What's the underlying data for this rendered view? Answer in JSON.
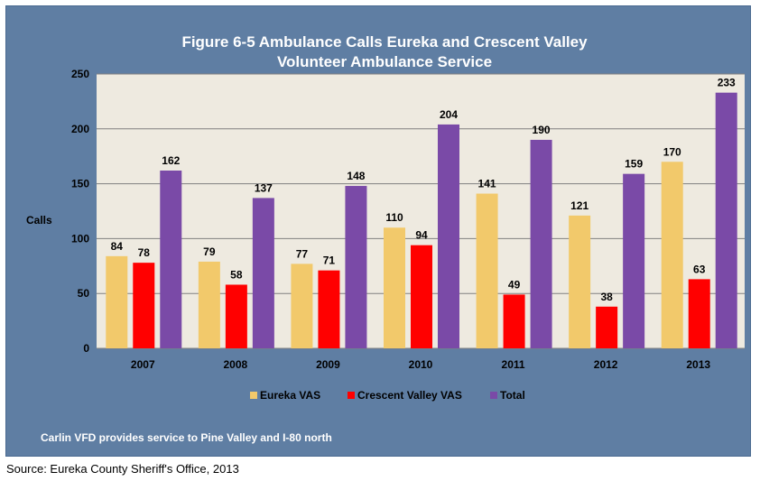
{
  "chart_data": {
    "type": "bar",
    "title_lines": [
      "Figure 6-5 Ambulance Calls Eureka and Crescent Valley",
      "Volunteer Ambulance Service"
    ],
    "ylabel": "Calls",
    "xlabel": "",
    "ylim": [
      0,
      250
    ],
    "yticks": [
      0,
      50,
      100,
      150,
      200,
      250
    ],
    "categories": [
      "2007",
      "2008",
      "2009",
      "2010",
      "2011",
      "2012",
      "2013"
    ],
    "series": [
      {
        "name": "Eureka VAS",
        "color": "#f2c96b",
        "values": [
          84,
          79,
          77,
          110,
          141,
          121,
          170
        ]
      },
      {
        "name": "Crescent Valley VAS",
        "color": "#ff0000",
        "values": [
          78,
          58,
          71,
          94,
          49,
          38,
          63
        ]
      },
      {
        "name": "Total",
        "color": "#7a4aa7",
        "values": [
          162,
          137,
          148,
          204,
          190,
          159,
          233
        ]
      }
    ],
    "grid": true,
    "legend_position": "bottom",
    "plot_background": "#eeeae0",
    "frame_background": "#5f7ea3"
  },
  "note": "Carlin VFD provides service to Pine Valley and I-80 north",
  "source": "Source: Eureka County Sheriff's Office, 2013"
}
